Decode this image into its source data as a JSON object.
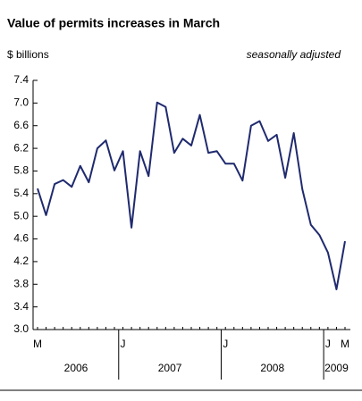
{
  "chart_data": {
    "type": "line",
    "title": "Value of permits increases in March",
    "y_axis_label": "$ billions",
    "subtitle": "seasonally adjusted",
    "categories": [
      "M",
      null,
      null,
      null,
      null,
      null,
      null,
      null,
      null,
      null,
      "J",
      null,
      null,
      null,
      null,
      null,
      null,
      null,
      null,
      null,
      null,
      null,
      "J",
      null,
      null,
      null,
      null,
      null,
      null,
      null,
      null,
      null,
      null,
      null,
      "J",
      null,
      "M"
    ],
    "year_groups": [
      {
        "label": "2006",
        "count": 10
      },
      {
        "label": "2007",
        "count": 12
      },
      {
        "label": "2008",
        "count": 12
      },
      {
        "label": "2009",
        "count": 3
      }
    ],
    "series": [
      {
        "name": "Value of permits",
        "color": "#1f2a6e",
        "values": [
          5.49,
          5.02,
          5.57,
          5.64,
          5.52,
          5.89,
          5.6,
          6.2,
          6.34,
          5.81,
          6.15,
          4.8,
          6.15,
          5.71,
          7.01,
          6.93,
          6.12,
          6.37,
          6.25,
          6.79,
          6.12,
          6.15,
          5.93,
          5.93,
          5.63,
          6.6,
          6.68,
          6.33,
          6.44,
          5.68,
          6.47,
          5.48,
          4.85,
          4.67,
          4.36,
          3.71,
          4.56
        ]
      }
    ],
    "ylim": [
      3.0,
      7.4
    ],
    "yticks": [
      {
        "value": 3,
        "label": "3.0"
      },
      3.4,
      3.8,
      4.2,
      4.6,
      {
        "value": 5,
        "label": "5.0"
      },
      5.4,
      5.8,
      6.2,
      6.6,
      {
        "value": 7,
        "label": "7.0"
      },
      7.4
    ]
  }
}
